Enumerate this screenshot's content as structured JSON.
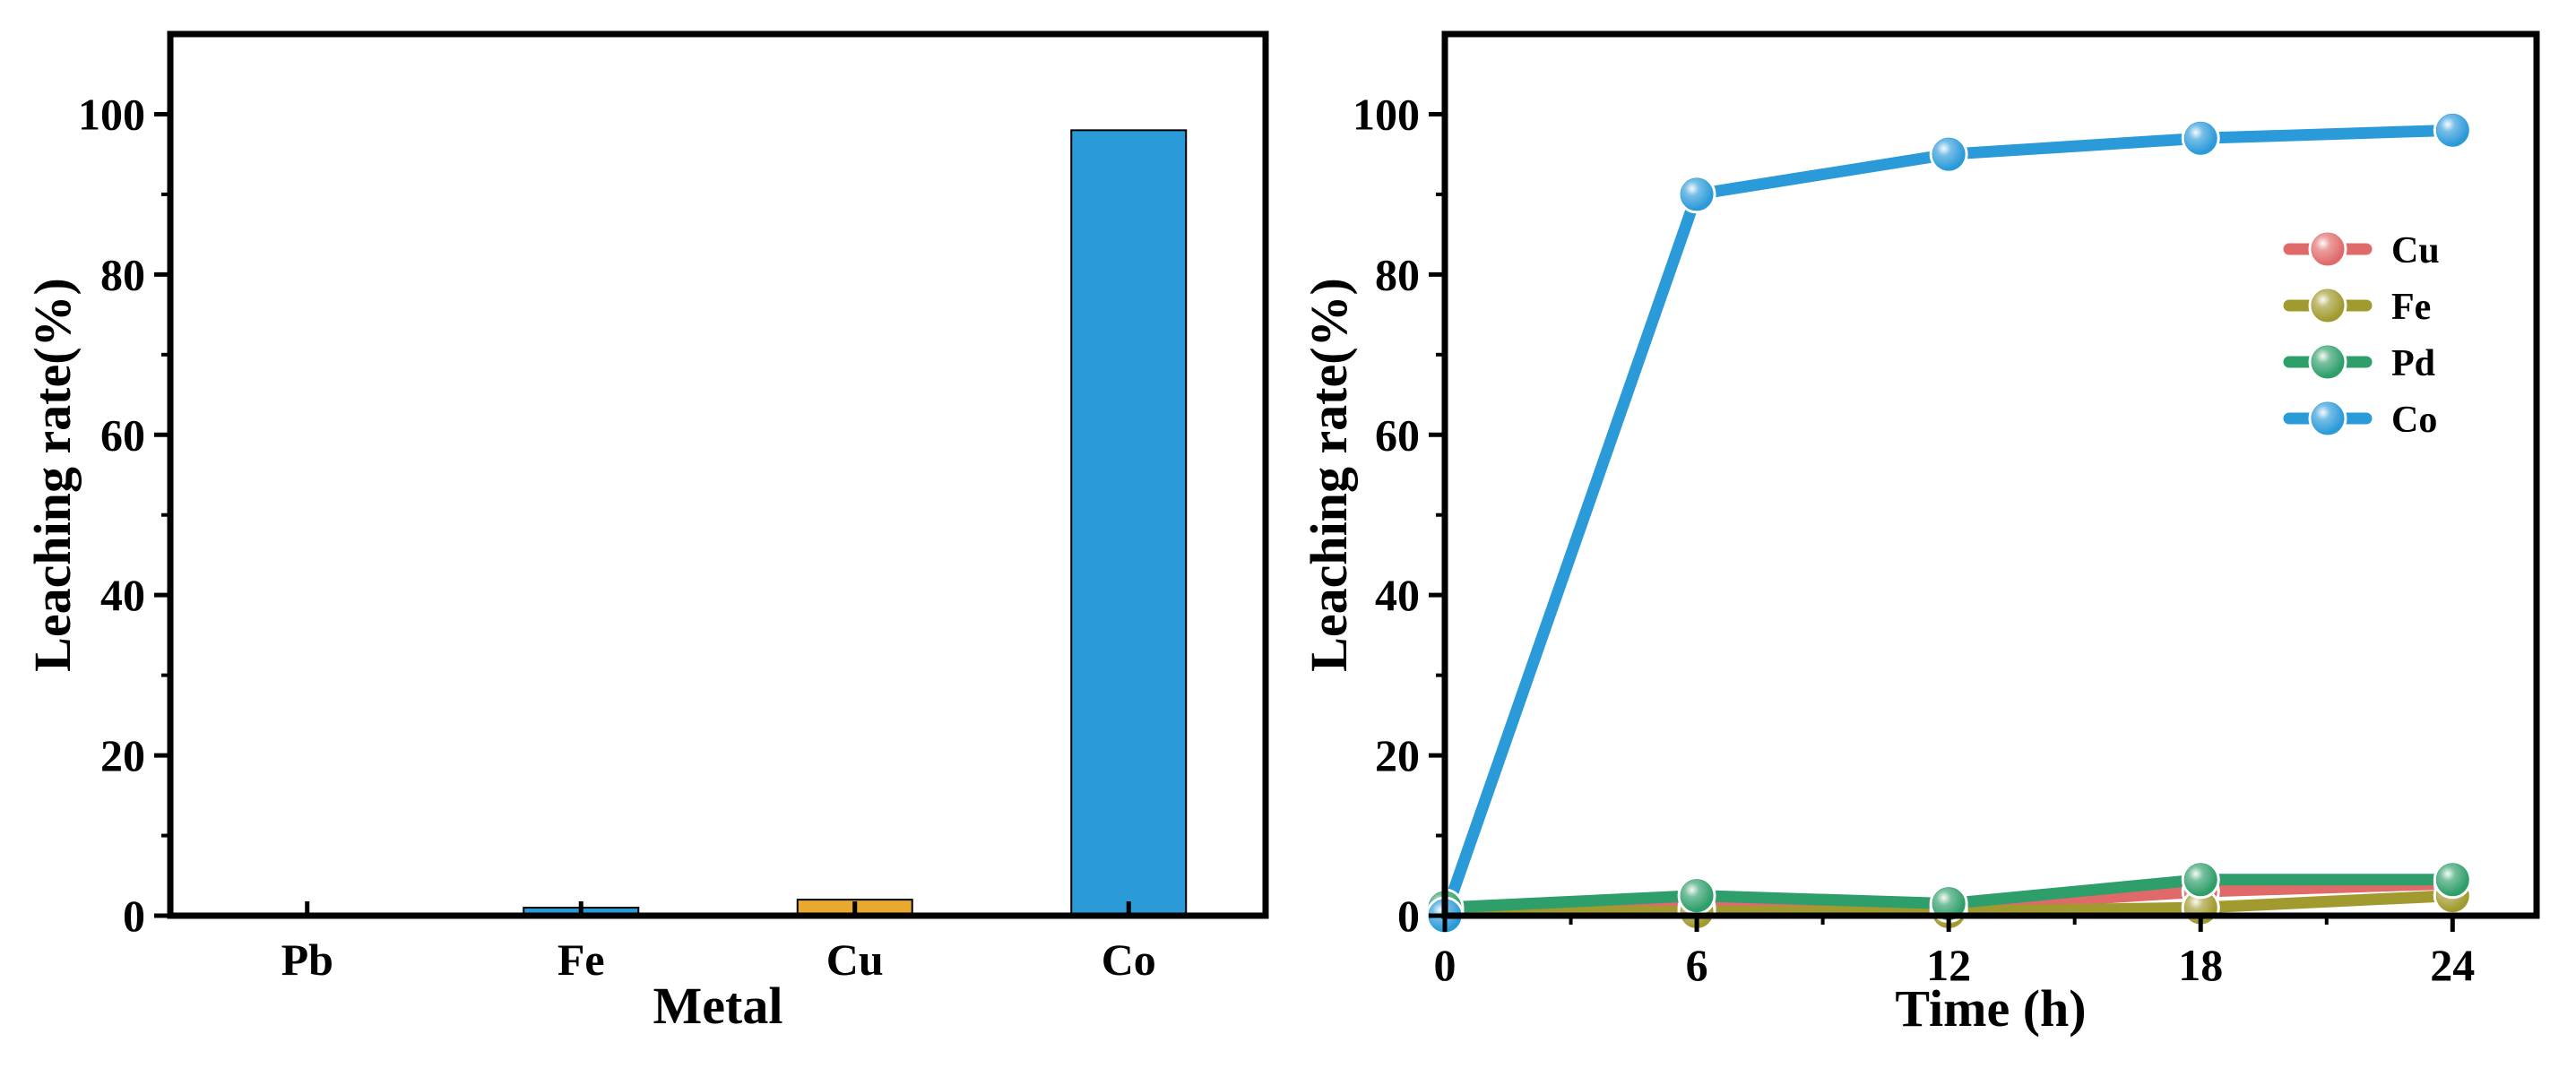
{
  "chart_data": [
    {
      "type": "bar",
      "categories": [
        "Pb",
        "Fe",
        "Cu",
        "Co"
      ],
      "values": [
        0,
        1,
        2,
        98
      ],
      "colors": [
        "#2b9ad9",
        "#2b9ad9",
        "#e8a92e",
        "#2b9ad9"
      ],
      "xlabel": "Metal",
      "ylabel": "Leaching rate(%)",
      "ylim": [
        0,
        110
      ],
      "yticks": [
        0,
        20,
        40,
        60,
        80,
        100
      ],
      "grid": false
    },
    {
      "type": "line",
      "x": [
        0,
        6,
        12,
        18,
        24
      ],
      "xticks": [
        0,
        6,
        12,
        18,
        24
      ],
      "series": [
        {
          "name": "Cu",
          "values": [
            0.5,
            1,
            1,
            3,
            4
          ],
          "color": "#e06a6a"
        },
        {
          "name": "Fe",
          "values": [
            0.5,
            0.5,
            0.5,
            1,
            2.5
          ],
          "color": "#a19a2e"
        },
        {
          "name": "Pd",
          "values": [
            1,
            2.5,
            1.5,
            4.5,
            4.5
          ],
          "color": "#2e9e6a"
        },
        {
          "name": "Co",
          "values": [
            0,
            90,
            95,
            97,
            98
          ],
          "color": "#2b9ad9"
        }
      ],
      "xlabel": "Time (h)",
      "ylabel": "Leaching rate(%)",
      "xlim": [
        0,
        26
      ],
      "ylim": [
        0,
        110
      ],
      "yticks": [
        0,
        20,
        40,
        60,
        80,
        100
      ],
      "legend": "right",
      "grid": false
    }
  ]
}
